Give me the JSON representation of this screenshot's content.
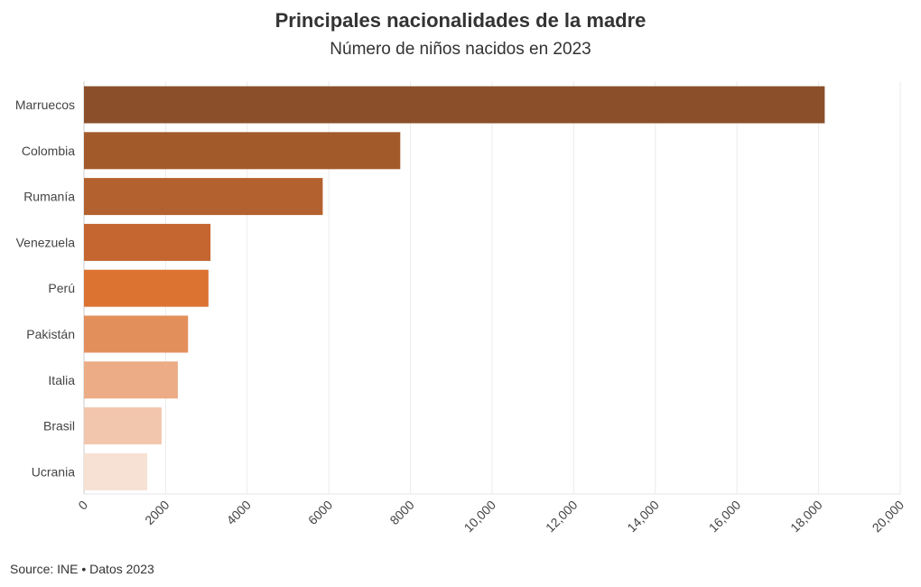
{
  "header": {
    "title": "Principales nacionalidades de la madre",
    "subtitle": "Número de niños nacidos en 2023"
  },
  "footer": {
    "source": "Source: INE • Datos 2023"
  },
  "chart_data": {
    "type": "bar",
    "orientation": "horizontal",
    "title": "Principales nacionalidades de la madre",
    "subtitle": "Número de niños nacidos en 2023",
    "xlabel": "",
    "ylabel": "",
    "categories": [
      "Marruecos",
      "Colombia",
      "Rumanía",
      "Venezuela",
      "Perú",
      "Pakistán",
      "Italia",
      "Brasil",
      "Ucrania"
    ],
    "values": [
      18150,
      7750,
      5850,
      3100,
      3050,
      2550,
      2300,
      1900,
      1550
    ],
    "colors": [
      "#8b4f2a",
      "#a35a2b",
      "#b3612e",
      "#c5652f",
      "#dc7331",
      "#e38f5c",
      "#ebac86",
      "#f2c6ac",
      "#f6e1d4"
    ],
    "xlim": [
      0,
      20000
    ],
    "xticks": [
      "0",
      "2000",
      "4000",
      "6000",
      "8000",
      "10,000",
      "12,000",
      "14,000",
      "16,000",
      "18,000",
      "20,000"
    ],
    "xtick_values": [
      0,
      2000,
      4000,
      6000,
      8000,
      10000,
      12000,
      14000,
      16000,
      18000,
      20000
    ],
    "grid": true
  }
}
